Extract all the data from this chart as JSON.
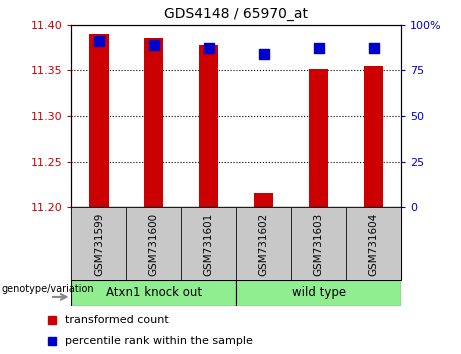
{
  "title": "GDS4148 / 65970_at",
  "samples": [
    "GSM731599",
    "GSM731600",
    "GSM731601",
    "GSM731602",
    "GSM731603",
    "GSM731604"
  ],
  "red_values": [
    11.39,
    11.385,
    11.378,
    11.215,
    11.352,
    11.355
  ],
  "blue_values": [
    91,
    89,
    87,
    84,
    87,
    87
  ],
  "ylim_left": [
    11.2,
    11.4
  ],
  "ylim_right": [
    0,
    100
  ],
  "yticks_left": [
    11.2,
    11.25,
    11.3,
    11.35,
    11.4
  ],
  "yticks_right": [
    0,
    25,
    50,
    75,
    100
  ],
  "group_bg_color": "#90ee90",
  "sample_bg_color": "#c8c8c8",
  "red_color": "#cc0000",
  "blue_color": "#0000cc",
  "bar_width": 0.35,
  "blue_marker_size": 55,
  "left_tick_color": "#cc0000",
  "right_tick_color": "#0000cc",
  "legend_red_label": "transformed count",
  "legend_blue_label": "percentile rank within the sample",
  "genotype_label": "genotype/variation",
  "group_defs": [
    {
      "indices": [
        0,
        1,
        2
      ],
      "label": "Atxn1 knock out"
    },
    {
      "indices": [
        3,
        4,
        5
      ],
      "label": "wild type"
    }
  ]
}
